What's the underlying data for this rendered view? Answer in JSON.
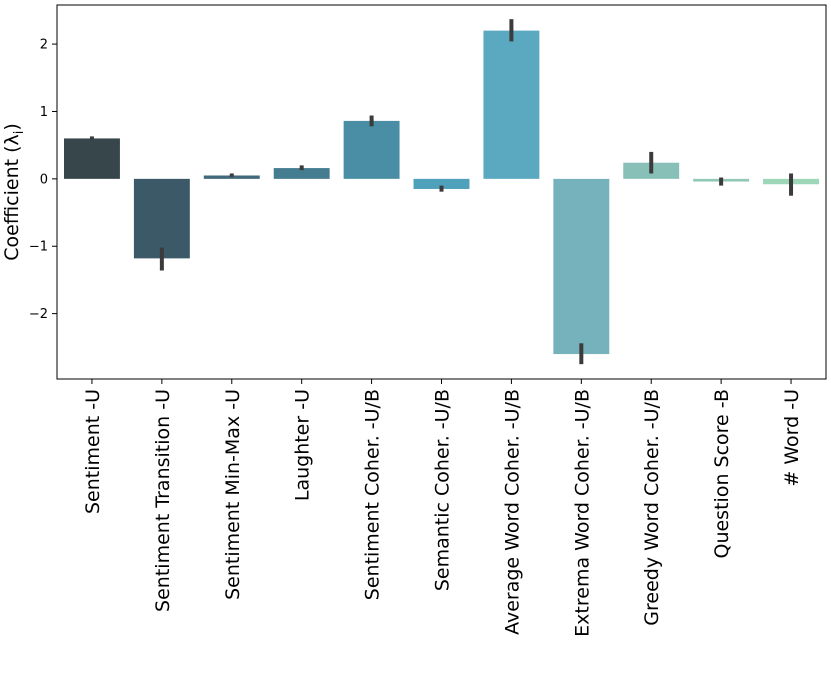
{
  "chart_data": {
    "type": "bar",
    "title": "",
    "xlabel": "",
    "ylabel": "Coefficient (λ",
    "ylabel_subscript": "i",
    "ylabel_close": ")",
    "ylim": [
      -2.97,
      2.58
    ],
    "yticks": [
      2,
      1,
      0,
      -1,
      -2
    ],
    "ytick_labels": [
      "2",
      "1",
      "0",
      "−1",
      "−2"
    ],
    "grid": false,
    "categories": [
      "Sentiment -U",
      "Sentiment Transition -U",
      "Sentiment Min-Max -U",
      "Laughter -U",
      "Sentiment Coher. -U/B",
      "Semantic Coher. -U/B",
      "Average Word Coher. -U/B",
      "Extrema Word Coher. -U/B",
      "Greedy Word Coher. -U/B",
      "Question Score -B",
      "# Word -U"
    ],
    "values": [
      0.6,
      -1.18,
      0.05,
      0.16,
      0.86,
      -0.15,
      2.2,
      -2.6,
      0.24,
      -0.04,
      -0.08
    ],
    "error_low": [
      0.58,
      -1.36,
      0.03,
      0.13,
      0.78,
      -0.19,
      2.04,
      -2.75,
      0.08,
      -0.1,
      -0.25
    ],
    "error_high": [
      0.63,
      -1.02,
      0.08,
      0.2,
      0.94,
      -0.1,
      2.37,
      -2.44,
      0.4,
      0.02,
      0.08
    ],
    "colors": [
      "#36464a",
      "#3b5966",
      "#40697b",
      "#447c90",
      "#4a8ea5",
      "#4fa0bb",
      "#5ba9c0",
      "#76b2bc",
      "#88c0b8",
      "#91c9b6",
      "#9dd6b8"
    ],
    "error_color": "#3b3b3b"
  }
}
